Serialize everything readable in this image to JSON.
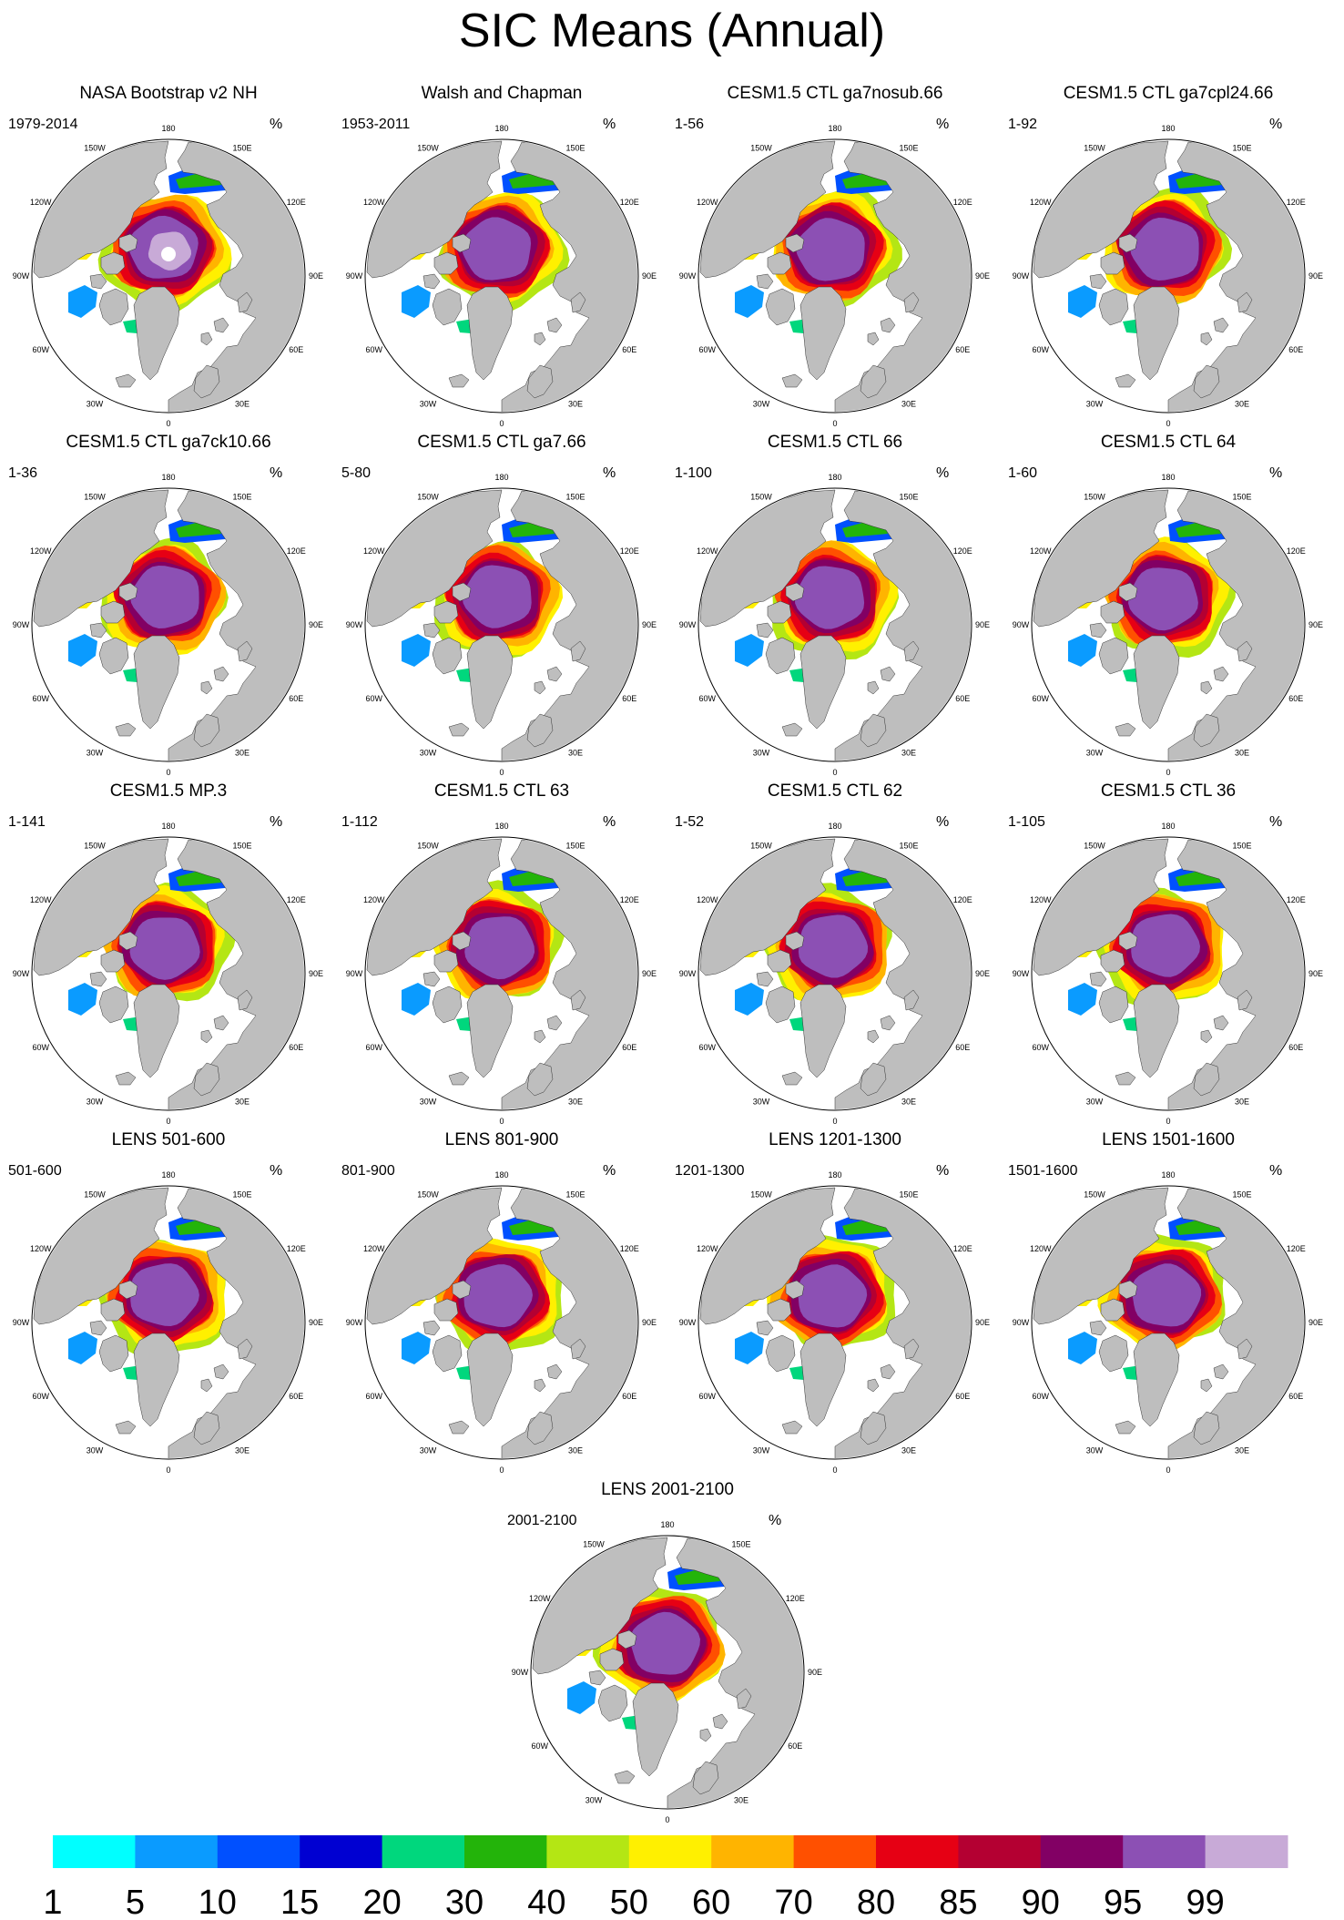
{
  "title": "SIC Means (Annual)",
  "unit": "%",
  "longitude_labels": [
    "180",
    "150E",
    "120E",
    "90E",
    "60E",
    "30E",
    "0",
    "30W",
    "60W",
    "90W",
    "120W",
    "150W"
  ],
  "panels": [
    {
      "title": "NASA Bootstrap v2 NH",
      "years": "1979-2014",
      "hole": true
    },
    {
      "title": "Walsh and Chapman",
      "years": "1953-2011"
    },
    {
      "title": "CESM1.5 CTL ga7nosub.66",
      "years": "1-56"
    },
    {
      "title": "CESM1.5 CTL ga7cpl24.66",
      "years": "1-92"
    },
    {
      "title": "CESM1.5 CTL ga7ck10.66",
      "years": "1-36"
    },
    {
      "title": "CESM1.5 CTL ga7.66",
      "years": "5-80"
    },
    {
      "title": "CESM1.5 CTL 66",
      "years": "1-100"
    },
    {
      "title": "CESM1.5 CTL 64",
      "years": "1-60"
    },
    {
      "title": "CESM1.5 MP.3",
      "years": "1-141"
    },
    {
      "title": "CESM1.5 CTL 63",
      "years": "1-112"
    },
    {
      "title": "CESM1.5 CTL 62",
      "years": "1-52"
    },
    {
      "title": "CESM1.5 CTL 36",
      "years": "1-105"
    },
    {
      "title": "LENS 501-600",
      "years": "501-600"
    },
    {
      "title": "LENS 801-900",
      "years": "801-900"
    },
    {
      "title": "LENS 1201-1300",
      "years": "1201-1300"
    },
    {
      "title": "LENS 1501-1600",
      "years": "1501-1600"
    },
    {
      "title": "LENS 2001-2100",
      "years": "2001-2100"
    }
  ],
  "colorbar": {
    "levels": [
      "1",
      "5",
      "10",
      "15",
      "20",
      "30",
      "40",
      "50",
      "60",
      "70",
      "80",
      "85",
      "90",
      "95",
      "99"
    ],
    "colors": [
      "#00ffff",
      "#0a9bff",
      "#0050ff",
      "#0000d2",
      "#00d77d",
      "#23b40a",
      "#b4e614",
      "#fff000",
      "#ffb400",
      "#ff5000",
      "#e60014",
      "#b40032",
      "#820064",
      "#8c50b4",
      "#c8aad7"
    ]
  },
  "map_colors": {
    "land": "#bebebe",
    "ocean": "#ffffff",
    "outline": "#000000"
  }
}
